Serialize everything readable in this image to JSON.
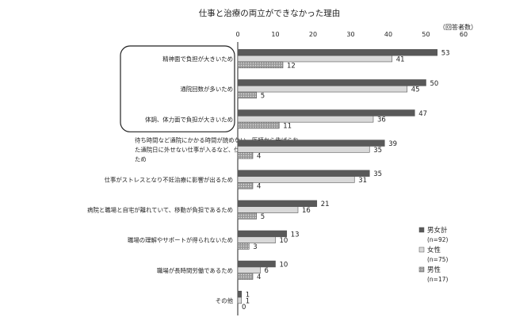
{
  "chart_data": {
    "type": "bar",
    "orientation": "horizontal",
    "title": "仕事と治療の両立ができなかった理由",
    "unit_label": "（回答者数）",
    "xlim": [
      0,
      60
    ],
    "ticks": [
      0,
      10,
      20,
      30,
      40,
      50,
      60
    ],
    "grid": false,
    "legend_position": "right",
    "categories": [
      [
        "精神面で負担が大きいため"
      ],
      [
        "通院回数が多いため"
      ],
      [
        "体調、体力面で負担が大きいため"
      ],
      [
        "待ち時間など通院にかかる時間が読めない、医師から告げられ",
        "た通院日に外せない仕事が入るなど、仕事の日程調整が難しい",
        "ため"
      ],
      [
        "仕事がストレスとなり不妊治療に影響が出るため"
      ],
      [
        "病院と職場と自宅が離れていて、移動が負担であるため"
      ],
      [
        "職場の理解やサポートが得られないため"
      ],
      [
        "職場が長時間労働であるため"
      ],
      [
        "その他"
      ]
    ],
    "highlighted_categories": [
      0,
      1,
      2
    ],
    "series": [
      {
        "name": "男女計",
        "n_label": "(n=92)",
        "color": "#595959",
        "values": [
          53,
          50,
          47,
          39,
          35,
          21,
          13,
          10,
          1
        ]
      },
      {
        "name": "女性",
        "n_label": "(n=75)",
        "color": "#d9d9d9",
        "values": [
          41,
          45,
          36,
          35,
          31,
          16,
          10,
          6,
          1
        ]
      },
      {
        "name": "男性",
        "n_label": "(n=17)",
        "color": "#8c8c8c",
        "pattern": "dots",
        "values": [
          12,
          5,
          11,
          4,
          4,
          5,
          3,
          4,
          0
        ]
      }
    ]
  }
}
